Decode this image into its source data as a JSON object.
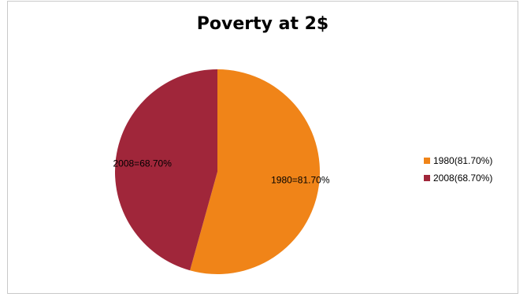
{
  "chart_data": {
    "type": "pie",
    "title": "Poverty at 2$",
    "slices": [
      {
        "label": "1980=81.70%",
        "legend": "1980(81.70%)",
        "value": 81.7,
        "color": "#f08418"
      },
      {
        "label": "2008=68.70%",
        "legend": "2008(68.70%)",
        "value": 68.7,
        "color": "#a0263a"
      }
    ],
    "legend_position": "right",
    "start_angle_deg": 0,
    "direction": "clockwise"
  }
}
